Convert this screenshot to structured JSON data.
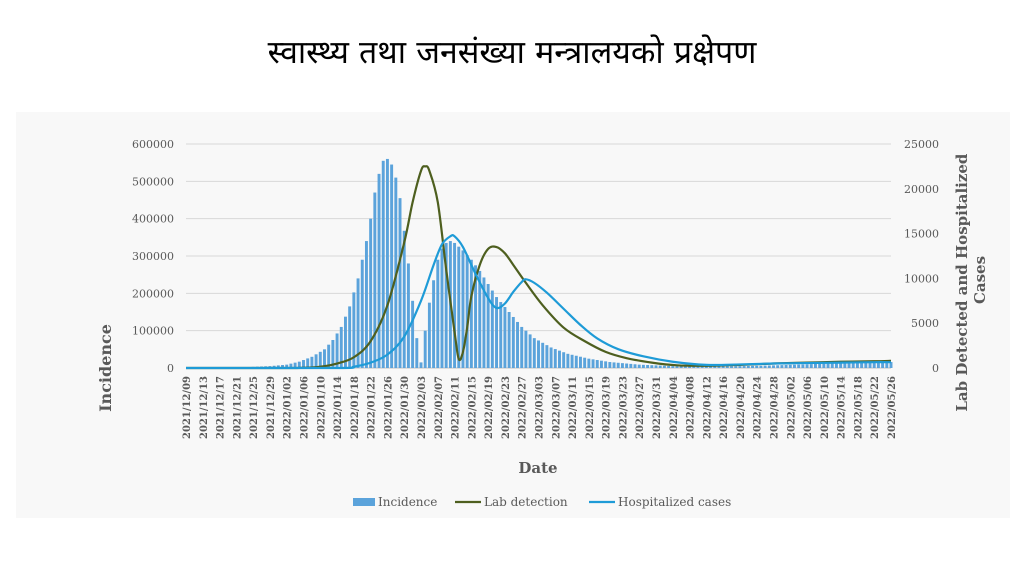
{
  "slide": {
    "title": "स्वास्थ्य तथा जनसंख्या मन्त्रालयको प्रक्षेपण"
  },
  "chart_data": {
    "type": "bar+line",
    "title": "",
    "xlabel": "Date",
    "ylabel_left": "Incidence",
    "ylabel_right": "Lab Detected and Hospitalized Cases",
    "ylim_left": [
      0,
      600000
    ],
    "ylim_right": [
      0,
      25000
    ],
    "yticks_left": [
      "0",
      "100000",
      "200000",
      "300000",
      "400000",
      "500000",
      "600000"
    ],
    "yticks_right": [
      "0",
      "5000",
      "10000",
      "15000",
      "20000",
      "25000"
    ],
    "grid": true,
    "legend_position": "bottom",
    "start_date": "2021-12-09",
    "end_date": "2022-05-26",
    "x_tick_labels": [
      "2021/12/09",
      "2021/12/13",
      "2021/12/17",
      "2021/12/21",
      "2021/12/25",
      "2021/12/29",
      "2022/01/02",
      "2022/01/06",
      "2022/01/10",
      "2022/01/14",
      "2022/01/18",
      "2022/01/22",
      "2022/01/26",
      "2022/01/30",
      "2022/02/03",
      "2022/02/07",
      "2022/02/11",
      "2022/02/15",
      "2022/02/19",
      "2022/02/23",
      "2022/02/27",
      "2022/03/03",
      "2022/03/07",
      "2022/03/11",
      "2022/03/15",
      "2022/03/19",
      "2022/03/23",
      "2022/03/27",
      "2022/03/31",
      "2022/04/04",
      "2022/04/08",
      "2022/04/12",
      "2022/04/16",
      "2022/04/20",
      "2022/04/24",
      "2022/04/28",
      "2022/05/02",
      "2022/05/06",
      "2022/05/10",
      "2022/05/14",
      "2022/05/18",
      "2022/05/22",
      "2022/05/26"
    ],
    "series": [
      {
        "name": "Incidence",
        "type": "bar",
        "axis": "left",
        "color": "#5BA3DB",
        "points": [
          [
            "2021-12-09",
            0
          ],
          [
            "2021-12-15",
            500
          ],
          [
            "2021-12-20",
            1500
          ],
          [
            "2021-12-25",
            3000
          ],
          [
            "2021-12-29",
            5000
          ],
          [
            "2022-01-02",
            9000
          ],
          [
            "2022-01-05",
            17000
          ],
          [
            "2022-01-08",
            30000
          ],
          [
            "2022-01-11",
            50000
          ],
          [
            "2022-01-13",
            75000
          ],
          [
            "2022-01-15",
            110000
          ],
          [
            "2022-01-17",
            165000
          ],
          [
            "2022-01-19",
            240000
          ],
          [
            "2022-01-21",
            340000
          ],
          [
            "2022-01-22",
            400000
          ],
          [
            "2022-01-23",
            470000
          ],
          [
            "2022-01-24",
            520000
          ],
          [
            "2022-01-25",
            555000
          ],
          [
            "2022-01-26",
            560000
          ],
          [
            "2022-01-27",
            545000
          ],
          [
            "2022-01-28",
            510000
          ],
          [
            "2022-01-29",
            455000
          ],
          [
            "2022-01-31",
            280000
          ],
          [
            "2022-02-01",
            180000
          ],
          [
            "2022-02-02",
            80000
          ],
          [
            "2022-02-03",
            15000
          ],
          [
            "2022-02-04",
            100000
          ],
          [
            "2022-02-05",
            175000
          ],
          [
            "2022-02-06",
            235000
          ],
          [
            "2022-02-07",
            290000
          ],
          [
            "2022-02-08",
            320000
          ],
          [
            "2022-02-09",
            335000
          ],
          [
            "2022-02-10",
            340000
          ],
          [
            "2022-02-11",
            335000
          ],
          [
            "2022-02-13",
            315000
          ],
          [
            "2022-02-15",
            290000
          ],
          [
            "2022-02-17",
            260000
          ],
          [
            "2022-02-19",
            225000
          ],
          [
            "2022-02-21",
            190000
          ],
          [
            "2022-02-24",
            150000
          ],
          [
            "2022-02-27",
            110000
          ],
          [
            "2022-03-02",
            80000
          ],
          [
            "2022-03-06",
            55000
          ],
          [
            "2022-03-10",
            38000
          ],
          [
            "2022-03-15",
            25000
          ],
          [
            "2022-03-20",
            16000
          ],
          [
            "2022-03-27",
            9000
          ],
          [
            "2022-04-04",
            5000
          ],
          [
            "2022-04-12",
            4000
          ],
          [
            "2022-04-20",
            5000
          ],
          [
            "2022-04-28",
            7000
          ],
          [
            "2022-05-06",
            10000
          ],
          [
            "2022-05-14",
            13000
          ],
          [
            "2022-05-20",
            15000
          ],
          [
            "2022-05-26",
            16000
          ]
        ]
      },
      {
        "name": "Lab detection",
        "type": "line",
        "axis": "right",
        "color": "#4E5F1F",
        "points": [
          [
            "2021-12-09",
            0
          ],
          [
            "2022-01-01",
            0
          ],
          [
            "2022-01-06",
            30
          ],
          [
            "2022-01-10",
            150
          ],
          [
            "2022-01-14",
            500
          ],
          [
            "2022-01-18",
            1200
          ],
          [
            "2022-01-22",
            3000
          ],
          [
            "2022-01-26",
            7000
          ],
          [
            "2022-01-30",
            14000
          ],
          [
            "2022-02-01",
            18500
          ],
          [
            "2022-02-03",
            22000
          ],
          [
            "2022-02-04",
            22500
          ],
          [
            "2022-02-05",
            22000
          ],
          [
            "2022-02-07",
            18500
          ],
          [
            "2022-02-09",
            11000
          ],
          [
            "2022-02-11",
            4000
          ],
          [
            "2022-02-12",
            1000
          ],
          [
            "2022-02-13",
            1800
          ],
          [
            "2022-02-14",
            4500
          ],
          [
            "2022-02-15",
            8000
          ],
          [
            "2022-02-17",
            11500
          ],
          [
            "2022-02-19",
            13300
          ],
          [
            "2022-02-21",
            13500
          ],
          [
            "2022-02-23",
            12800
          ],
          [
            "2022-02-25",
            11500
          ],
          [
            "2022-02-28",
            9500
          ],
          [
            "2022-03-04",
            7000
          ],
          [
            "2022-03-09",
            4500
          ],
          [
            "2022-03-14",
            3000
          ],
          [
            "2022-03-19",
            1800
          ],
          [
            "2022-03-24",
            1100
          ],
          [
            "2022-03-30",
            600
          ],
          [
            "2022-04-05",
            300
          ],
          [
            "2022-04-12",
            250
          ],
          [
            "2022-04-20",
            350
          ],
          [
            "2022-04-28",
            500
          ],
          [
            "2022-05-06",
            600
          ],
          [
            "2022-05-14",
            700
          ],
          [
            "2022-05-22",
            750
          ],
          [
            "2022-05-26",
            800
          ]
        ]
      },
      {
        "name": "Hospitalized cases",
        "type": "line",
        "axis": "right",
        "color": "#1E9BD7",
        "points": [
          [
            "2021-12-09",
            0
          ],
          [
            "2022-01-14",
            0
          ],
          [
            "2022-01-18",
            150
          ],
          [
            "2022-01-22",
            600
          ],
          [
            "2022-01-26",
            1500
          ],
          [
            "2022-01-30",
            3500
          ],
          [
            "2022-02-03",
            7500
          ],
          [
            "2022-02-06",
            11500
          ],
          [
            "2022-02-08",
            13800
          ],
          [
            "2022-02-10",
            14700
          ],
          [
            "2022-02-11",
            14700
          ],
          [
            "2022-02-13",
            13500
          ],
          [
            "2022-02-16",
            10500
          ],
          [
            "2022-02-19",
            7800
          ],
          [
            "2022-02-21",
            6700
          ],
          [
            "2022-02-23",
            7200
          ],
          [
            "2022-02-25",
            8500
          ],
          [
            "2022-02-27",
            9600
          ],
          [
            "2022-02-28",
            9900
          ],
          [
            "2022-03-02",
            9500
          ],
          [
            "2022-03-05",
            8400
          ],
          [
            "2022-03-09",
            6600
          ],
          [
            "2022-03-13",
            4800
          ],
          [
            "2022-03-17",
            3300
          ],
          [
            "2022-03-22",
            2100
          ],
          [
            "2022-03-28",
            1300
          ],
          [
            "2022-04-04",
            700
          ],
          [
            "2022-04-12",
            350
          ],
          [
            "2022-04-20",
            400
          ],
          [
            "2022-04-28",
            500
          ],
          [
            "2022-05-06",
            550
          ],
          [
            "2022-05-14",
            600
          ],
          [
            "2022-05-22",
            650
          ],
          [
            "2022-05-26",
            650
          ]
        ]
      }
    ]
  }
}
